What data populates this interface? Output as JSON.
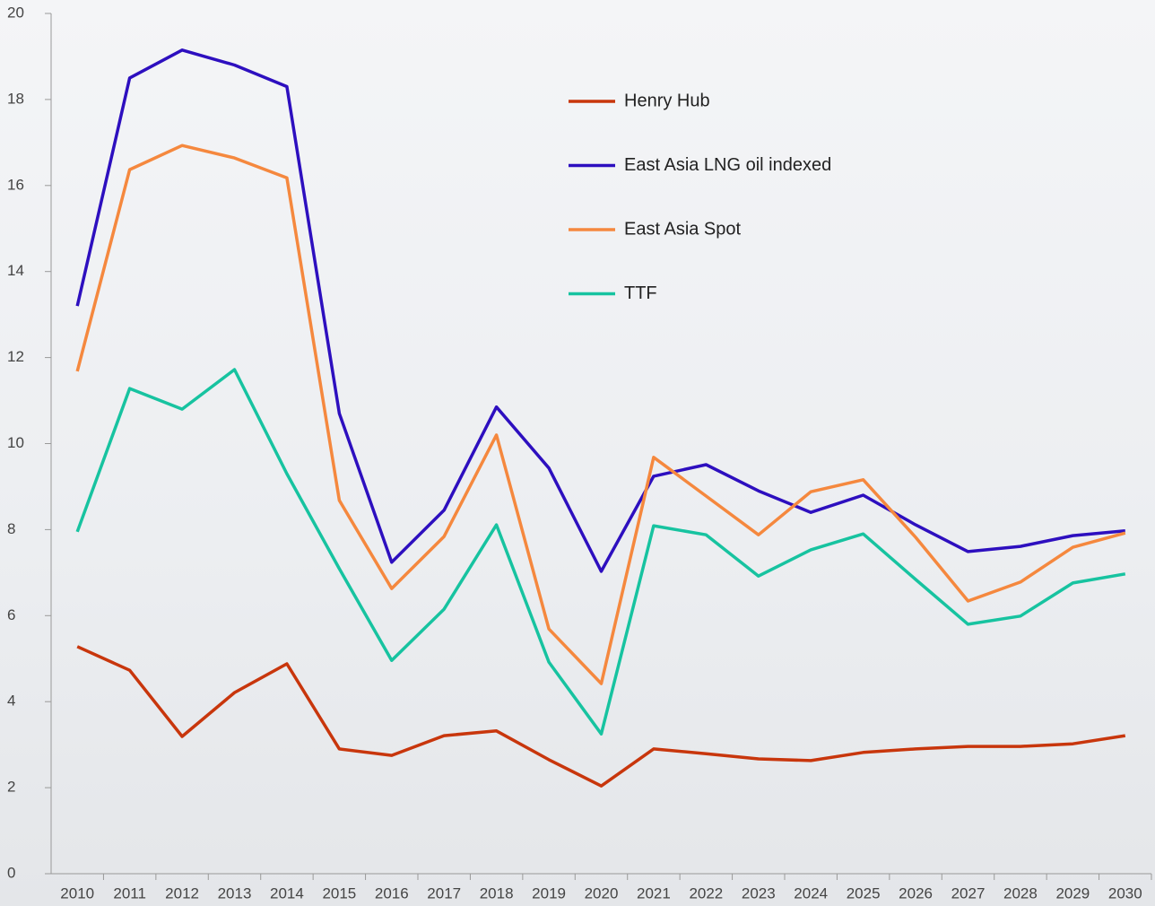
{
  "chart_data": {
    "type": "line",
    "categories": [
      "2010",
      "2011",
      "2012",
      "2013",
      "2014",
      "2015",
      "2016",
      "2017",
      "2018",
      "2019",
      "2020",
      "2021",
      "2022",
      "2023",
      "2024",
      "2025",
      "2026",
      "2027",
      "2028",
      "2029",
      "2030"
    ],
    "series": [
      {
        "name": "Henry Hub",
        "color": "#c8360c",
        "values": [
          5.28,
          4.73,
          3.19,
          4.21,
          4.88,
          2.9,
          2.75,
          3.21,
          3.32,
          2.65,
          2.04,
          2.9,
          2.79,
          2.67,
          2.63,
          2.82,
          2.9,
          2.96,
          2.96,
          3.02,
          3.21
        ]
      },
      {
        "name": "East Asia LNG oil indexed",
        "color": "#2d0fbf",
        "values": [
          13.2,
          18.5,
          19.15,
          18.8,
          18.3,
          10.7,
          7.24,
          8.45,
          10.85,
          9.43,
          7.03,
          9.24,
          9.51,
          8.9,
          8.4,
          8.8,
          8.11,
          7.49,
          7.61,
          7.86,
          7.97
        ]
      },
      {
        "name": "East Asia Spot",
        "color": "#f5883e",
        "values": [
          11.68,
          16.37,
          16.93,
          16.64,
          16.18,
          8.68,
          6.63,
          7.84,
          10.2,
          5.69,
          4.42,
          9.68,
          8.78,
          7.88,
          8.88,
          9.16,
          7.82,
          6.34,
          6.78,
          7.59,
          7.92
        ]
      },
      {
        "name": "TTF",
        "color": "#17c3a0",
        "values": [
          7.95,
          11.28,
          10.8,
          11.72,
          9.3,
          7.09,
          4.96,
          6.15,
          8.11,
          4.92,
          3.25,
          8.09,
          7.88,
          6.92,
          7.53,
          7.9,
          6.84,
          5.8,
          5.99,
          6.76,
          6.97
        ]
      }
    ],
    "ylim": [
      0,
      20
    ],
    "yticks": [
      0,
      2,
      4,
      6,
      8,
      10,
      12,
      14,
      16,
      18,
      20
    ],
    "grid": false,
    "legend": "upper center"
  }
}
